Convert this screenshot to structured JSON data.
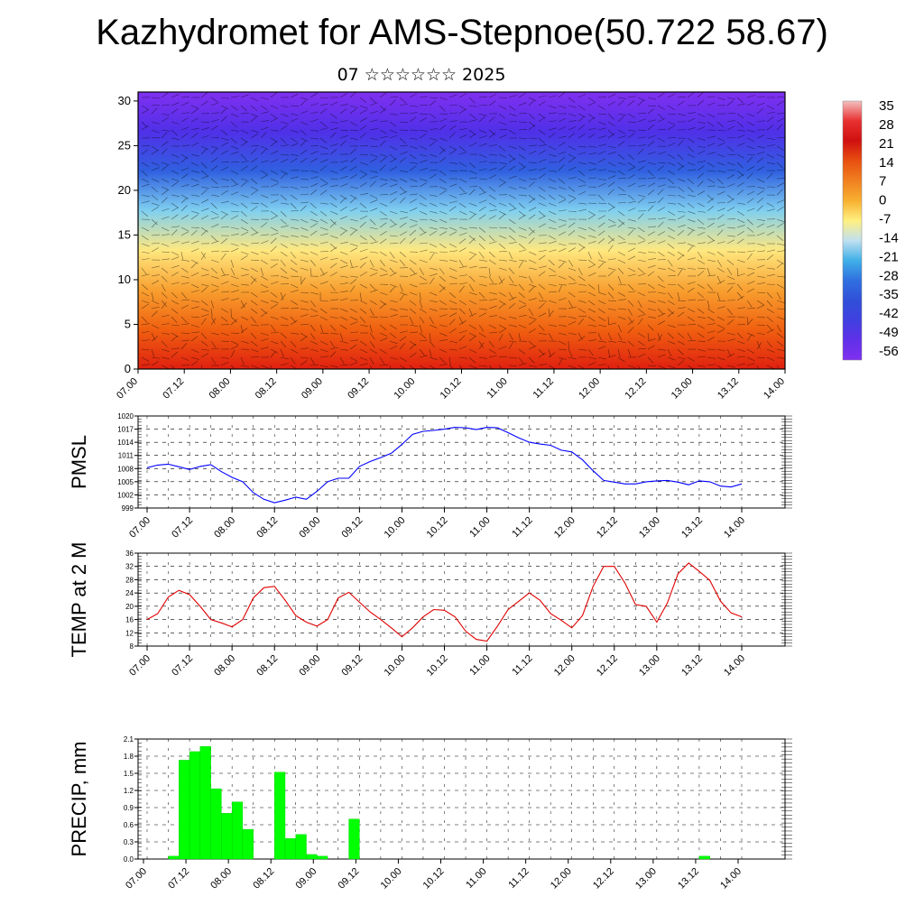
{
  "header": {
    "title": "Kazhydromet for AMS-Stepnoe(50.722 58.67)",
    "subtitle": "07 ☆☆☆☆☆☆ 2025"
  },
  "colorbar": {
    "labels": [
      "35",
      "28",
      "21",
      "14",
      "7",
      "0",
      "-7",
      "-14",
      "-21",
      "-28",
      "-35",
      "-42",
      "-49",
      "-56"
    ],
    "colors": [
      "#f4c0c0",
      "#e83030",
      "#d01010",
      "#e85010",
      "#f08020",
      "#f8b030",
      "#fff080",
      "#c0e0f0",
      "#40b0e8",
      "#3070e0",
      "#3050d8",
      "#4040e0",
      "#6030e8",
      "#8030f0"
    ]
  },
  "chart_data": [
    {
      "type": "heatmap",
      "name": "cross-section",
      "x_ticks": [
        "07.00",
        "07.12",
        "08.00",
        "08.12",
        "09.00",
        "09.12",
        "10.00",
        "10.12",
        "11.00",
        "11.12",
        "12.00",
        "12.12",
        "13.00",
        "13.12",
        "14.00"
      ],
      "y_ticks": [
        0,
        5,
        10,
        15,
        20,
        25,
        30
      ],
      "ylim": [
        0,
        31
      ],
      "colors_by_height": [
        "#e02010",
        "#f06010",
        "#f8a030",
        "#ffe880",
        "#80d0f0",
        "#3060e0",
        "#5030e8",
        "#8030f0"
      ]
    },
    {
      "type": "line",
      "ylabel": "PMSL",
      "ylim": [
        999,
        1020
      ],
      "y_ticks": [
        999,
        1002,
        1005,
        1008,
        1011,
        1014,
        1017,
        1020
      ],
      "x_ticks": [
        "07.00",
        "07.12",
        "08.00",
        "08.12",
        "09.00",
        "09.12",
        "10.00",
        "10.12",
        "11.00",
        "11.12",
        "12.00",
        "12.12",
        "13.00",
        "13.12",
        "14.00"
      ],
      "color": "#0000ff",
      "values": [
        1008.2,
        1008.8,
        1009.0,
        1008.4,
        1007.8,
        1008.5,
        1008.9,
        1007.3,
        1006.0,
        1005.0,
        1002.5,
        1001.0,
        1000.2,
        1000.8,
        1001.5,
        1001.0,
        1002.8,
        1005.0,
        1005.8,
        1005.8,
        1008.5,
        1009.6,
        1010.5,
        1011.5,
        1013.5,
        1015.8,
        1016.5,
        1016.7,
        1017.0,
        1017.4,
        1017.3,
        1016.9,
        1017.4,
        1017.3,
        1016.2,
        1015.0,
        1014.0,
        1013.6,
        1013.3,
        1012.2,
        1011.8,
        1010.0,
        1007.5,
        1005.3,
        1004.9,
        1004.5,
        1004.5,
        1005.0,
        1005.2,
        1005.3,
        1004.9,
        1004.3,
        1005.2,
        1005.0,
        1004.0,
        1003.8,
        1004.5
      ]
    },
    {
      "type": "line",
      "ylabel": "TEMP at 2 M",
      "ylim": [
        8,
        36
      ],
      "y_ticks": [
        8,
        12,
        16,
        20,
        24,
        28,
        32,
        36
      ],
      "x_ticks": [
        "07.00",
        "07.12",
        "08.00",
        "08.12",
        "09.00",
        "09.12",
        "10.00",
        "10.12",
        "11.00",
        "11.12",
        "12.00",
        "12.12",
        "13.00",
        "13.12",
        "14.00"
      ],
      "color": "#e00000",
      "values": [
        16.0,
        17.8,
        22.8,
        24.8,
        23.5,
        20.0,
        16.0,
        15.0,
        13.8,
        16.0,
        22.5,
        25.6,
        26.0,
        21.8,
        17.2,
        15.2,
        14.0,
        16.0,
        22.5,
        24.2,
        21.2,
        18.3,
        16.0,
        13.5,
        10.8,
        13.5,
        16.8,
        19.0,
        18.8,
        16.8,
        12.5,
        10.0,
        9.5,
        14.0,
        19.0,
        21.5,
        24.0,
        21.8,
        17.8,
        15.8,
        13.5,
        17.2,
        26.0,
        32.0,
        32.0,
        27.0,
        20.5,
        20.0,
        15.2,
        21.0,
        29.8,
        33.0,
        30.5,
        27.8,
        21.5,
        18.0,
        16.8
      ]
    },
    {
      "type": "bar",
      "ylabel": "PRECIP, mm",
      "ylim": [
        0,
        2.1
      ],
      "y_ticks": [
        "0.0",
        "0.3",
        "0.6",
        "0.9",
        "1.2",
        "1.5",
        "1.8",
        "2.1"
      ],
      "x_ticks": [
        "07.00",
        "07.12",
        "08.00",
        "08.12",
        "09.00",
        "09.12",
        "10.00",
        "10.12",
        "11.00",
        "11.12",
        "12.00",
        "12.12",
        "13.00",
        "13.12",
        "14.00"
      ],
      "color": "#00ff00",
      "values": [
        0,
        0,
        0,
        0.05,
        1.73,
        1.88,
        1.97,
        1.23,
        0.8,
        1.0,
        0.52,
        0,
        0,
        1.52,
        0.36,
        0.43,
        0.08,
        0.05,
        0,
        0,
        0.7,
        0,
        0,
        0,
        0,
        0,
        0,
        0,
        0,
        0,
        0,
        0,
        0,
        0,
        0,
        0,
        0,
        0,
        0,
        0,
        0,
        0,
        0,
        0,
        0,
        0,
        0,
        0,
        0,
        0,
        0,
        0,
        0,
        0.05,
        0,
        0,
        0
      ]
    }
  ]
}
